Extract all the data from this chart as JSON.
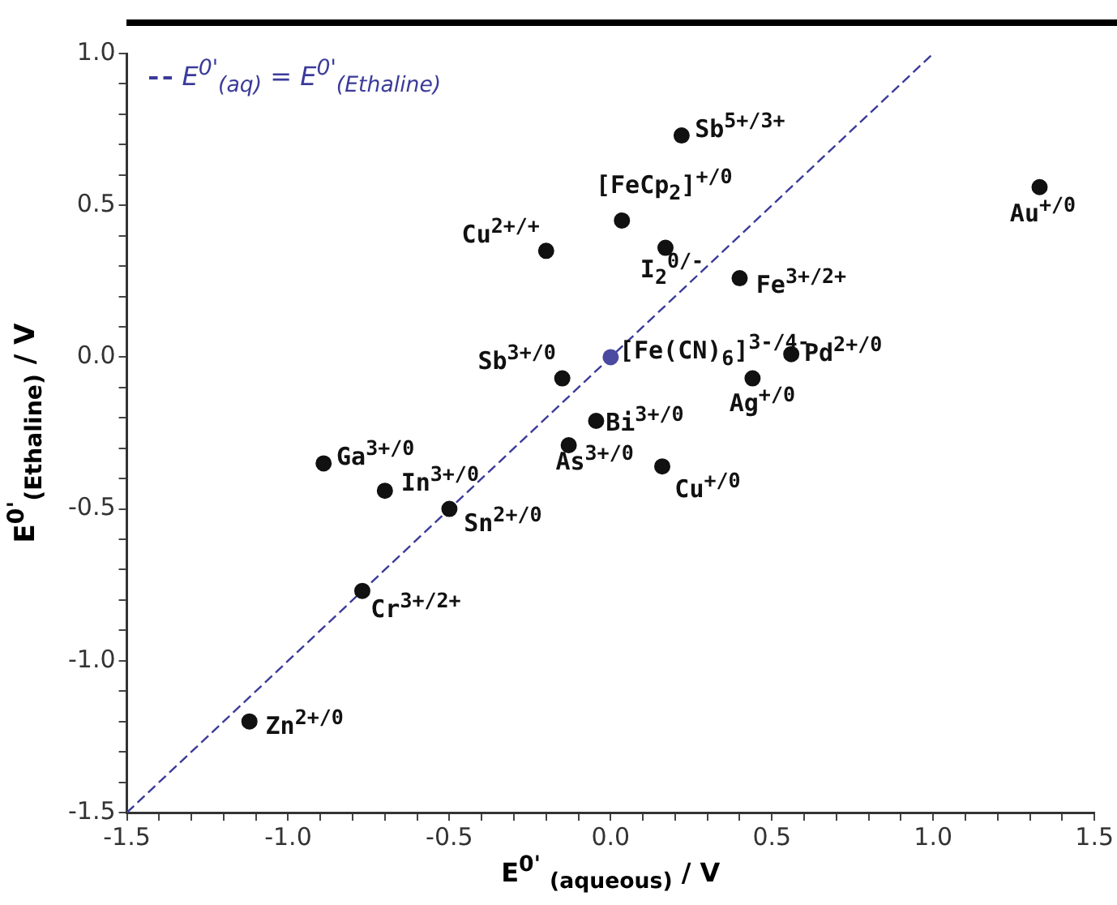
{
  "chart_data": {
    "type": "scatter",
    "xlabel": "E$^{0'}$ $_{(aqueous)}$ / V",
    "ylabel": "E$^{0'}$$_{(Ethaline)}$ / V",
    "xlim": [
      -1.5,
      1.5
    ],
    "ylim": [
      -1.5,
      1.0
    ],
    "xticks": [
      {
        "value": -1.5,
        "label": "-1.5"
      },
      {
        "value": -1.4,
        "label": null
      },
      {
        "value": -1.3,
        "label": null
      },
      {
        "value": -1.2,
        "label": null
      },
      {
        "value": -1.1,
        "label": null
      },
      {
        "value": -1,
        "label": "-1.0"
      },
      {
        "value": -0.9,
        "label": null
      },
      {
        "value": -0.8,
        "label": null
      },
      {
        "value": -0.7,
        "label": null
      },
      {
        "value": -0.6,
        "label": null
      },
      {
        "value": -0.5,
        "label": "-0.5"
      },
      {
        "value": -0.4,
        "label": null
      },
      {
        "value": -0.3,
        "label": null
      },
      {
        "value": -0.2,
        "label": null
      },
      {
        "value": -0.1,
        "label": null
      },
      {
        "value": 0,
        "label": "0.0"
      },
      {
        "value": 0.1,
        "label": null
      },
      {
        "value": 0.2,
        "label": null
      },
      {
        "value": 0.3,
        "label": null
      },
      {
        "value": 0.4,
        "label": null
      },
      {
        "value": 0.5,
        "label": "0.5"
      },
      {
        "value": 0.6,
        "label": null
      },
      {
        "value": 0.7,
        "label": null
      },
      {
        "value": 0.8,
        "label": null
      },
      {
        "value": 0.9,
        "label": null
      },
      {
        "value": 1,
        "label": "1.0"
      },
      {
        "value": 1.1,
        "label": null
      },
      {
        "value": 1.2,
        "label": null
      },
      {
        "value": 1.3,
        "label": null
      },
      {
        "value": 1.4,
        "label": null
      },
      {
        "value": 1.5,
        "label": "1.5"
      }
    ],
    "yticks": [
      {
        "value": -1.5,
        "label": "-1.5"
      },
      {
        "value": -1.4,
        "label": null
      },
      {
        "value": -1.3,
        "label": null
      },
      {
        "value": -1.2,
        "label": null
      },
      {
        "value": -1.1,
        "label": null
      },
      {
        "value": -1,
        "label": "-1.0"
      },
      {
        "value": -0.9,
        "label": null
      },
      {
        "value": -0.8,
        "label": null
      },
      {
        "value": -0.7,
        "label": null
      },
      {
        "value": -0.6,
        "label": null
      },
      {
        "value": -0.5,
        "label": "-0.5"
      },
      {
        "value": -0.4,
        "label": null
      },
      {
        "value": -0.3,
        "label": null
      },
      {
        "value": -0.2,
        "label": null
      },
      {
        "value": -0.1,
        "label": null
      },
      {
        "value": 0,
        "label": "0.0"
      },
      {
        "value": 0.1,
        "label": null
      },
      {
        "value": 0.2,
        "label": null
      },
      {
        "value": 0.3,
        "label": null
      },
      {
        "value": 0.4,
        "label": null
      },
      {
        "value": 0.5,
        "label": "0.5"
      },
      {
        "value": 0.6,
        "label": null
      },
      {
        "value": 0.7,
        "label": null
      },
      {
        "value": 0.8,
        "label": null
      },
      {
        "value": 0.9,
        "label": null
      },
      {
        "value": 1,
        "label": "1.0"
      }
    ],
    "grid": false,
    "legend": "top left",
    "marker": "circle",
    "series": [
      {
        "color": "#111111",
        "x": [
          0.22,
          0.035,
          -0.2,
          0.17,
          0.4,
          1.33,
          0.56,
          0.44,
          -0.15,
          -0.045,
          -0.13,
          0.16,
          -0.89,
          -0.7,
          -0.5,
          -0.77,
          -1.12
        ],
        "values": [
          0.73,
          0.45,
          0.35,
          0.36,
          0.26,
          0.56,
          0.01,
          -0.07,
          -0.07,
          -0.21,
          -0.29,
          -0.36,
          -0.35,
          -0.44,
          -0.5,
          -0.77,
          -1.2
        ]
      },
      {
        "color": "#4a4aa0",
        "x": [
          0
        ],
        "values": [
          0
        ]
      },
      {
        "type": "line",
        "name": "E$^{0'}$$_{(aq)}$ = E$^{0'}$$_{(Ethaline)}$",
        "color": "#3b3b9a",
        "line_style": "dashed",
        "marker": "none",
        "x": [
          -1.5,
          1.0
        ],
        "values": [
          -1.5,
          1.0
        ]
      }
    ],
    "annotations": [
      {
        "text": "Sb$^{5+/3+}$",
        "x": 0.22,
        "y": 0.73
      },
      {
        "text": "[FeCp$_{2}$]$^{+/0}$",
        "x": 0.035,
        "y": 0.45
      },
      {
        "text": "Cu$^{2+/+}$",
        "x": -0.2,
        "y": 0.35
      },
      {
        "text": "I$_{2}$$^{0/-}$",
        "x": 0.17,
        "y": 0.36
      },
      {
        "text": "Fe$^{3+/2+}$",
        "x": 0.4,
        "y": 0.26
      },
      {
        "text": "Au$^{+/0}$",
        "x": 1.33,
        "y": 0.56
      },
      {
        "text": "Pd$^{2+/0}$",
        "x": 0.56,
        "y": 0.01
      },
      {
        "text": "Ag$^{+/0}$",
        "x": 0.44,
        "y": -0.07
      },
      {
        "text": "Sb$^{3+/0}$",
        "x": -0.15,
        "y": -0.07
      },
      {
        "text": "Bi$^{3+/0}$",
        "x": -0.045,
        "y": -0.21
      },
      {
        "text": "As$^{3+/0}$",
        "x": -0.13,
        "y": -0.29
      },
      {
        "text": "Cu$^{+/0}$",
        "x": 0.16,
        "y": -0.36
      },
      {
        "text": "Ga$^{3+/0}$",
        "x": -0.89,
        "y": -0.35
      },
      {
        "text": "In$^{3+/0}$",
        "x": -0.7,
        "y": -0.44
      },
      {
        "text": "Sn$^{2+/0}$",
        "x": -0.5,
        "y": -0.5
      },
      {
        "text": "Cr$^{3+/2+}$",
        "x": -0.77,
        "y": -0.77
      },
      {
        "text": "Zn$^{2+/0}$",
        "x": -1.12,
        "y": -1.2
      },
      {
        "text": "[Fe(CN)$_{6}$]$^{3-/4-}$",
        "x": 0,
        "y": 0
      }
    ]
  }
}
